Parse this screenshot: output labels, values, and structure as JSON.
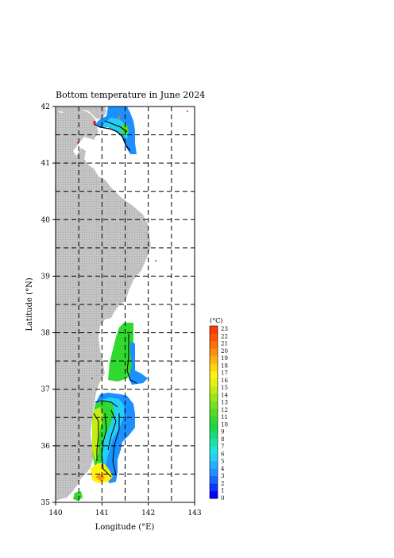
{
  "title": "Bottom temperature in June 2024",
  "axes": {
    "xlabel": "Longitude (°E)",
    "ylabel": "Latitude (°N)",
    "xlim": [
      140,
      143
    ],
    "ylim": [
      35,
      42
    ],
    "xticks": [
      "140",
      "141",
      "142",
      "143"
    ],
    "yticks": [
      "35",
      "36",
      "37",
      "38",
      "39",
      "40",
      "41",
      "42"
    ],
    "grid_lon": [
      140.5,
      141.0,
      141.5,
      142.0,
      142.5
    ],
    "grid_lat": [
      35.5,
      36.0,
      36.5,
      37.0,
      37.5,
      38.0,
      38.5,
      39.0,
      39.5,
      40.0,
      40.5,
      41.0,
      41.5
    ]
  },
  "colorbar": {
    "unit": "(°C)",
    "labels": [
      "23",
      "22",
      "21",
      "20",
      "19",
      "18",
      "17",
      "16",
      "15",
      "14",
      "13",
      "12",
      "11",
      "10",
      "9",
      "8",
      "7",
      "6",
      "5",
      "4",
      "3",
      "2",
      "1",
      "0"
    ],
    "min": 0,
    "max": 23,
    "colors": [
      "#0000ff",
      "#0a34ff",
      "#1565ff",
      "#1f8fff",
      "#25b0ff",
      "#22d0f5",
      "#1ee3d8",
      "#19e2a8",
      "#16dc78",
      "#18d84a",
      "#30d830",
      "#54dc22",
      "#78e01c",
      "#9ce616",
      "#c2ec12",
      "#e4f010",
      "#fff010",
      "#ffd40e",
      "#ffb20c",
      "#ff900a",
      "#ff7006",
      "#ff5404",
      "#ff3a00"
    ]
  },
  "colors": {
    "land": "#c4c4c4",
    "land_dots": "#9a9a9a",
    "deep_water": "#1e8fff",
    "shelf_green": "#30d830",
    "warm_yellow": "#fff010",
    "orange": "#ff7006",
    "red_dot": "#ff2020"
  }
}
